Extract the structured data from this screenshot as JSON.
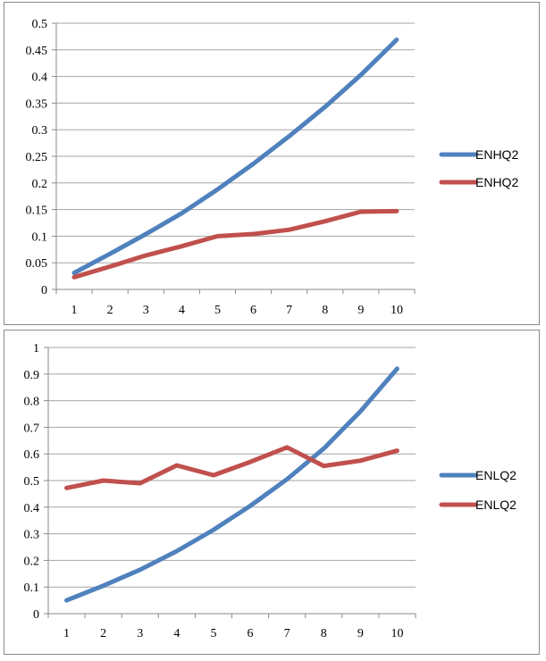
{
  "chart_data": [
    {
      "type": "line",
      "x": [
        1,
        2,
        3,
        4,
        5,
        6,
        7,
        8,
        9,
        10
      ],
      "ylim": [
        0,
        0.5
      ],
      "yticks": [
        0,
        0.05,
        0.1,
        0.15,
        0.2,
        0.25,
        0.3,
        0.35,
        0.4,
        0.45,
        0.5
      ],
      "ytick_labels": [
        "0",
        "0.05",
        "0.1",
        "0.15",
        "0.2",
        "0.25",
        "0.3",
        "0.35",
        "0.4",
        "0.45",
        "0.5"
      ],
      "grid": true,
      "legend_position": "right",
      "title": "",
      "xlabel": "",
      "ylabel": "",
      "series": [
        {
          "name": "ENHQ2",
          "color": "#4f81bd",
          "values": [
            0.031,
            0.067,
            0.104,
            0.143,
            0.188,
            0.236,
            0.288,
            0.343,
            0.403,
            0.469
          ]
        },
        {
          "name": "ENHQ2",
          "color": "#c0504d",
          "values": [
            0.023,
            0.043,
            0.064,
            0.081,
            0.1,
            0.104,
            0.112,
            0.128,
            0.146,
            0.147
          ]
        }
      ]
    },
    {
      "type": "line",
      "x": [
        1,
        2,
        3,
        4,
        5,
        6,
        7,
        8,
        9,
        10
      ],
      "ylim": [
        0,
        1
      ],
      "yticks": [
        0,
        0.1,
        0.2,
        0.3,
        0.4,
        0.5,
        0.6,
        0.7,
        0.8,
        0.9,
        1
      ],
      "ytick_labels": [
        "0",
        "0.1",
        "0.2",
        "0.3",
        "0.4",
        "0.5",
        "0.6",
        "0.7",
        "0.8",
        "0.9",
        "1"
      ],
      "grid": true,
      "legend_position": "right",
      "title": "",
      "xlabel": "",
      "ylabel": "",
      "series": [
        {
          "name": "ENLQ2",
          "color": "#4f81bd",
          "values": [
            0.05,
            0.105,
            0.165,
            0.235,
            0.315,
            0.405,
            0.505,
            0.62,
            0.76,
            0.92
          ]
        },
        {
          "name": "ENLQ2",
          "color": "#c0504d",
          "values": [
            0.472,
            0.5,
            0.49,
            0.557,
            0.52,
            0.57,
            0.625,
            0.555,
            0.575,
            0.612
          ]
        }
      ]
    }
  ]
}
